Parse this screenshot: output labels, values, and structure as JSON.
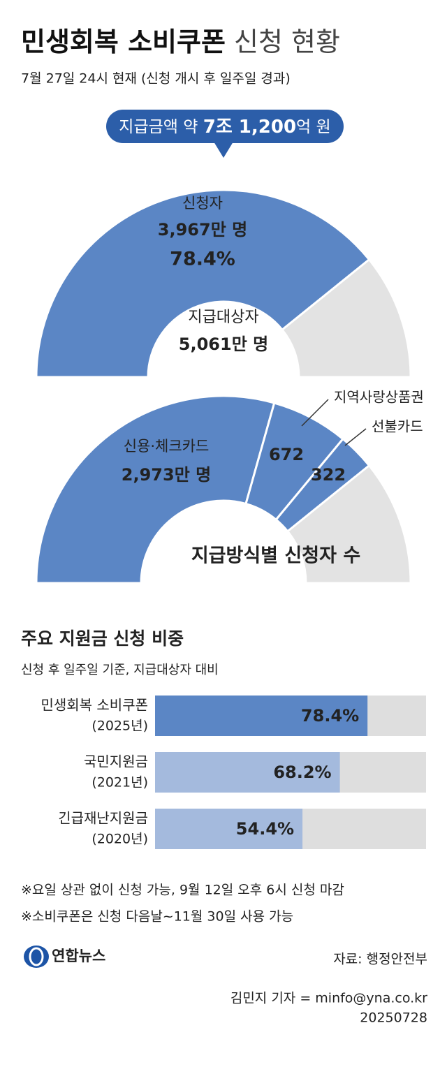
{
  "header": {
    "title_bold": "민생회복 소비쿠폰",
    "title_light": "신청 현황",
    "subtitle": "7월 27일 24시 현재 (신청 개시 후 일주일 경과)"
  },
  "chart_data": [
    {
      "type": "semicircle",
      "callout": [
        "지급금액 약",
        "7조 1,200",
        "억 원"
      ],
      "categories": [
        "신청자"
      ],
      "values": [
        3967
      ],
      "value_labels": [
        "3,967만 명"
      ],
      "percent": 78.4,
      "percent_label": "78.4%",
      "total_name": "지급대상자",
      "total": 5061,
      "total_label": "5,061만 명",
      "colors": [
        "#5b86c5"
      ],
      "rest_color": "#e3e3e3"
    },
    {
      "type": "semicircle",
      "title": "지급방식별 신청자 수",
      "categories": [
        "신용·체크카드",
        "지역사랑상품권",
        "선불카드"
      ],
      "values": [
        2973,
        672,
        322
      ],
      "value_labels": [
        "2,973만 명",
        "672",
        "322"
      ],
      "colors": [
        "#5b86c5",
        "#5b86c5",
        "#5b86c5"
      ],
      "rest_color": "#e3e3e3"
    },
    {
      "type": "bar",
      "title": "주요 지원금 신청 비중",
      "subtitle": "신청 후 일주일 기준, 지급대상자 대비",
      "categories": [
        "민생회복 소비쿠폰",
        "국민지원금",
        "긴급재난지원금"
      ],
      "sub_labels": [
        "(2025년)",
        "(2021년)",
        "(2020년)"
      ],
      "values": [
        78.4,
        68.2,
        54.4
      ],
      "value_labels": [
        "78.4%",
        "68.2%",
        "54.4%"
      ],
      "colors": [
        "#5b86c5",
        "#a4badd",
        "#a4badd"
      ],
      "track_color": "#dedede",
      "xlim": [
        0,
        100
      ]
    }
  ],
  "notes": [
    "※요일 상관 없이 신청 가능, 9월 12일 오후 6시 신청 마감",
    "※소비쿠폰은 신청 다음날~11월 30일 사용 가능"
  ],
  "footer": {
    "logo": "연합뉴스",
    "source": "자료: 행정안전부",
    "byline": "김민지 기자 = minfo@yna.co.kr",
    "date": "20250728"
  }
}
